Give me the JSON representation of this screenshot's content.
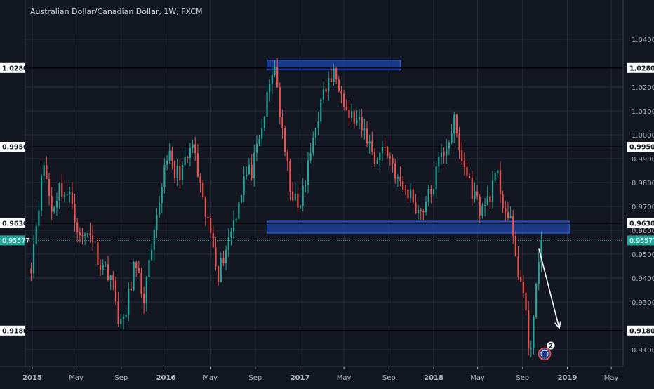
{
  "header": {
    "title": "Australian Dollar/Canadian Dollar, 1W, FXCM"
  },
  "colors": {
    "background": "#131722",
    "grid": "#2a2e39",
    "axis_text": "#b2b5be",
    "up": "#26a69a",
    "down": "#ef5350",
    "zone_fill": "#1e3f96",
    "zone_border": "#2962ff",
    "level_line": "#000000",
    "price_line": "#26a69a",
    "arrow": "#ffffff"
  },
  "event_marker": {
    "badge_count": "2",
    "icon": "australia-flag-icon"
  },
  "chart_data": {
    "type": "candlestick",
    "title": "Australian Dollar/Canadian Dollar, 1W, FXCM",
    "x_axis_labels": [
      "2015",
      "May",
      "Sep",
      "2016",
      "May",
      "Sep",
      "2017",
      "May",
      "Sep",
      "2018",
      "May",
      "Sep",
      "2019",
      "May"
    ],
    "y_tick_labels": [
      "1.04000",
      "1.02000",
      "1.01000",
      "1.00000",
      "0.99000",
      "0.98000",
      "0.97000",
      "0.96000",
      "0.95000",
      "0.94000",
      "0.93000",
      "0.91000"
    ],
    "ylim": [
      0.9035,
      1.0435
    ],
    "grid": true,
    "horizontal_levels": [
      {
        "label": "1.02800",
        "value": 1.028
      },
      {
        "label": "0.99500",
        "value": 0.995
      },
      {
        "label": "0.96300",
        "value": 0.963
      },
      {
        "label": "0.91800",
        "value": 0.918
      }
    ],
    "current_price": {
      "label": "0.95577",
      "value": 0.95577
    },
    "zones": [
      {
        "x_start": "2016-10-03",
        "x_end": "2017-10-02",
        "top": 1.0312,
        "bottom": 1.0272
      },
      {
        "x_start": "2016-10-03",
        "x_end": "2019-01-07",
        "top": 0.9638,
        "bottom": 0.9588
      }
    ],
    "projection_arrow": {
      "x_start": "2018-10-15",
      "y_start": 0.9525,
      "x_end": "2018-12-10",
      "y_end": 0.919
    },
    "candle_keypoints": [
      [
        "2014-12-29",
        0.946
      ],
      [
        "2015-01-19",
        0.972
      ],
      [
        "2015-02-02",
        0.988
      ],
      [
        "2015-02-23",
        0.968
      ],
      [
        "2015-03-16",
        0.978
      ],
      [
        "2015-04-20",
        0.972
      ],
      [
        "2015-05-11",
        0.956
      ],
      [
        "2015-06-08",
        0.96
      ],
      [
        "2015-07-06",
        0.946
      ],
      [
        "2015-08-03",
        0.942
      ],
      [
        "2015-08-24",
        0.924
      ],
      [
        "2015-09-07",
        0.92
      ],
      [
        "2015-10-05",
        0.945
      ],
      [
        "2015-11-02",
        0.932
      ],
      [
        "2015-11-30",
        0.956
      ],
      [
        "2015-12-21",
        0.98
      ],
      [
        "2016-01-04",
        0.993
      ],
      [
        "2016-01-25",
        0.983
      ],
      [
        "2016-02-22",
        0.987
      ],
      [
        "2016-03-14",
        0.996
      ],
      [
        "2016-04-11",
        0.97
      ],
      [
        "2016-05-09",
        0.955
      ],
      [
        "2016-05-23",
        0.942
      ],
      [
        "2016-06-13",
        0.953
      ],
      [
        "2016-07-11",
        0.968
      ],
      [
        "2016-08-01",
        0.982
      ],
      [
        "2016-08-22",
        0.985
      ],
      [
        "2016-09-12",
        0.996
      ],
      [
        "2016-10-03",
        1.015
      ],
      [
        "2016-10-24",
        1.03
      ],
      [
        "2016-11-14",
        0.999
      ],
      [
        "2016-12-05",
        0.979
      ],
      [
        "2016-12-26",
        0.968
      ],
      [
        "2017-01-16",
        0.98
      ],
      [
        "2017-02-13",
        1.005
      ],
      [
        "2017-03-13",
        1.02
      ],
      [
        "2017-04-03",
        1.025
      ],
      [
        "2017-04-24",
        1.021
      ],
      [
        "2017-05-08",
        1.01
      ],
      [
        "2017-06-05",
        1.005
      ],
      [
        "2017-07-03",
        0.999
      ],
      [
        "2017-07-24",
        0.99
      ],
      [
        "2017-08-21",
        0.995
      ],
      [
        "2017-09-11",
        0.988
      ],
      [
        "2017-10-02",
        0.978
      ],
      [
        "2017-10-30",
        0.975
      ],
      [
        "2017-11-20",
        0.968
      ],
      [
        "2017-12-04",
        0.97
      ],
      [
        "2017-12-25",
        0.976
      ],
      [
        "2018-01-15",
        0.988
      ],
      [
        "2018-02-05",
        0.996
      ],
      [
        "2018-02-26",
        1.005
      ],
      [
        "2018-03-12",
        0.993
      ],
      [
        "2018-04-02",
        0.983
      ],
      [
        "2018-04-23",
        0.974
      ],
      [
        "2018-05-14",
        0.968
      ],
      [
        "2018-06-04",
        0.976
      ],
      [
        "2018-06-25",
        0.982
      ],
      [
        "2018-07-09",
        0.972
      ],
      [
        "2018-07-30",
        0.962
      ],
      [
        "2018-08-20",
        0.943
      ],
      [
        "2018-09-03",
        0.933
      ],
      [
        "2018-09-17",
        0.912
      ],
      [
        "2018-09-24",
        0.914
      ],
      [
        "2018-10-08",
        0.934
      ],
      [
        "2018-10-15",
        0.944
      ],
      [
        "2018-10-22",
        0.956
      ]
    ]
  }
}
